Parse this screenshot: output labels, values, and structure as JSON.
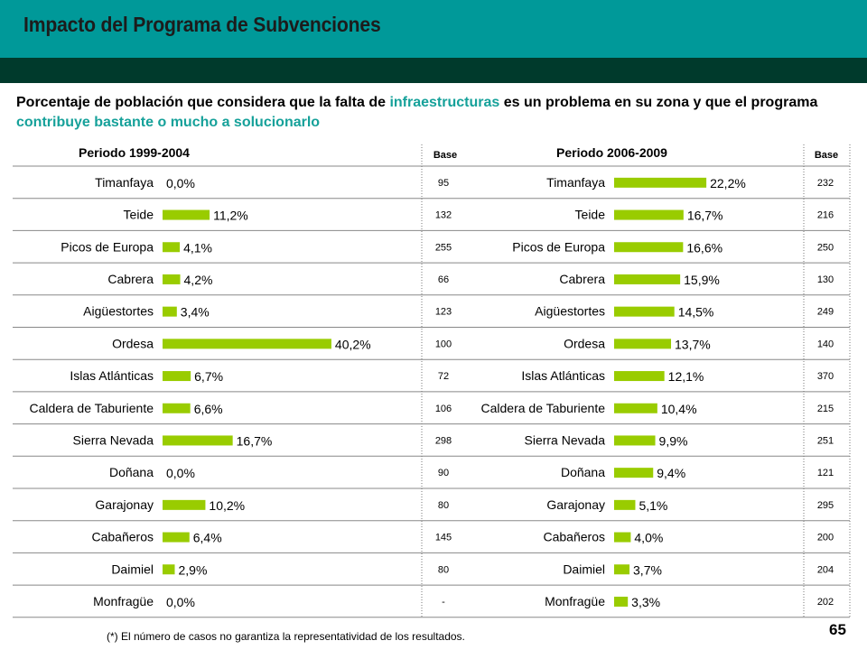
{
  "header": {
    "title": "Impacto del Programa de Subvenciones"
  },
  "subtitle": {
    "part1": "Porcentaje de población que considera que la falta de ",
    "hl1": "infraestructuras",
    "part2": " es un problema en su zona y que el programa ",
    "hl2": "contribuye bastante o mucho a solucionarlo"
  },
  "colors": {
    "bar": "#99cc00",
    "accent": "#16a19a",
    "header_band": "#009999",
    "dark_band": "#003a2c"
  },
  "base_label": "Base",
  "footnote": "(*) El número de casos no garantiza la representatividad de los resultados.",
  "page_number": "65",
  "chart_data": [
    {
      "type": "bar",
      "orientation": "horizontal",
      "title": "Periodo 1999-2004",
      "categories": [
        "Timanfaya",
        "Teide",
        "Picos de Europa",
        "Cabrera",
        "Aigüestortes",
        "Ordesa",
        "Islas Atlánticas",
        "Caldera de Taburiente",
        "Sierra Nevada",
        "Doñana",
        "Garajonay",
        "Cabañeros",
        "Daimiel",
        "Monfragüe"
      ],
      "values": [
        0.0,
        11.2,
        4.1,
        4.2,
        3.4,
        40.2,
        6.7,
        6.6,
        16.7,
        0.0,
        10.2,
        6.4,
        2.9,
        0.0
      ],
      "value_labels": [
        "0,0%",
        "11,2%",
        "4,1%",
        "4,2%",
        "3,4%",
        "40,2%",
        "6,7%",
        "6,6%",
        "16,7%",
        "0,0%",
        "10,2%",
        "6,4%",
        "2,9%",
        "0,0%"
      ],
      "base": [
        "95",
        "132",
        "255",
        "66",
        "123",
        "100",
        "72",
        "106",
        "298",
        "90",
        "80",
        "145",
        "80",
        "-"
      ],
      "unit": "%"
    },
    {
      "type": "bar",
      "orientation": "horizontal",
      "title": "Periodo 2006-2009",
      "categories": [
        "Timanfaya",
        "Teide",
        "Picos de Europa",
        "Cabrera",
        "Aigüestortes",
        "Ordesa",
        "Islas Atlánticas",
        "Caldera de Taburiente",
        "Sierra Nevada",
        "Doñana",
        "Garajonay",
        "Cabañeros",
        "Daimiel",
        "Monfragüe"
      ],
      "values": [
        22.2,
        16.7,
        16.6,
        15.9,
        14.5,
        13.7,
        12.1,
        10.4,
        9.9,
        9.4,
        5.1,
        4.0,
        3.7,
        3.3
      ],
      "value_labels": [
        "22,2%",
        "16,7%",
        "16,6%",
        "15,9%",
        "14,5%",
        "13,7%",
        "12,1%",
        "10,4%",
        "9,9%",
        "9,4%",
        "5,1%",
        "4,0%",
        "3,7%",
        "3,3%"
      ],
      "base": [
        "232",
        "216",
        "250",
        "130",
        "249",
        "140",
        "370",
        "215",
        "251",
        "121",
        "295",
        "200",
        "204",
        "202"
      ],
      "unit": "%"
    }
  ]
}
